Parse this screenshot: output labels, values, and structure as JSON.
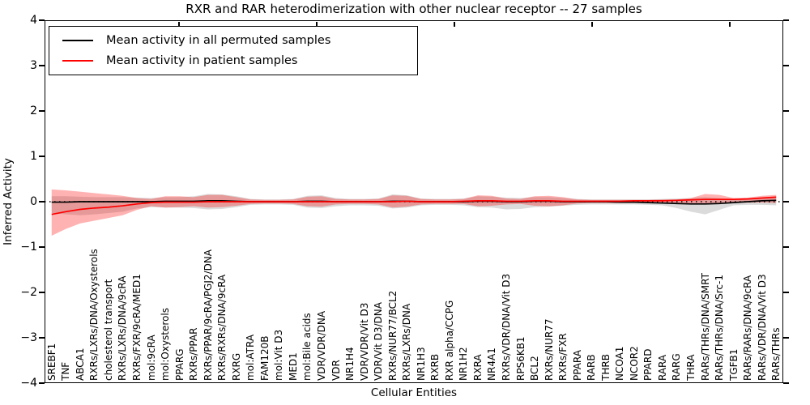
{
  "title": "RXR and RAR heterodimerization with other nuclear receptor -- 27 samples",
  "axes": {
    "ylabel": "Inferred Activity",
    "xlabel": "Cellular Entities",
    "yticks": [
      4,
      3,
      2,
      1,
      0,
      -1,
      -2,
      -3,
      -4
    ],
    "yticklabels": [
      "4",
      "3",
      "2",
      "1",
      "0",
      "−1",
      "−2",
      "−3",
      "−4"
    ]
  },
  "legend": {
    "position": "upper left",
    "items": [
      {
        "label": "Mean activity in all permuted samples",
        "color": "#000000"
      },
      {
        "label": "Mean activity in patient samples",
        "color": "#ff0000"
      }
    ]
  },
  "colors": {
    "patient_line": "#ff0000",
    "permuted_line": "#000000",
    "patient_band": "#ff0000",
    "permuted_band": "#999999",
    "zero_line": "#000000",
    "frame": "#000000",
    "background": "#ffffff"
  },
  "chart_data": {
    "type": "line",
    "title": "RXR and RAR heterodimerization with other nuclear receptor -- 27 samples",
    "xlabel": "Cellular Entities",
    "ylabel": "Inferred Activity",
    "ylim": [
      -4,
      4
    ],
    "grid": false,
    "zero_line_style": "dotted",
    "legend_position": "upper left",
    "n_samples": 27,
    "categories": [
      "SREBF1",
      "TNF",
      "ABCA1",
      "RXRs/LXRs/DNA/Oxysterols",
      "cholesterol transport",
      "RXRs/LXRs/DNA/9cRA",
      "RXRs/FXR/9cRA/MED1",
      "mol:9cRA",
      "mol:Oxysterols",
      "PPARG",
      "RXRs/PPAR",
      "RXRs/PPAR/9cRA/PGJ2/DNA",
      "RXRs/RXRs/DNA/9cRA",
      "RXRG",
      "mol:ATRA",
      "FAM120B",
      "mol:Vit D3",
      "MED1",
      "mol:Bile acids",
      "VDR/VDR/DNA",
      "VDR",
      "NR1H4",
      "VDR/VDR/Vit D3",
      "VDR/Vit D3/DNA",
      "RXRs/NUR77/BCL2",
      "RXRs/LXRs/DNA",
      "NR1H3",
      "RXRB",
      "RXR alpha/CCPG",
      "NR1H2",
      "RXRA",
      "NR4A1",
      "RXRs/VDR/DNA/Vit D3",
      "RPS6KB1",
      "BCL2",
      "RXRs/NUR77",
      "RXRs/FXR",
      "PPARA",
      "RARB",
      "THRB",
      "NCOA1",
      "NCOR2",
      "PPARD",
      "RARA",
      "RARG",
      "THRA",
      "RARs/THRs/DNA/SMRT",
      "RARs/THRs/DNA/Src-1",
      "TGFB1",
      "RARs/RARs/DNA/9cRA",
      "RARs/VDR/DNA/Vit D3",
      "RARs/THRs"
    ],
    "series": [
      {
        "name": "Permuted samples confidence band",
        "type": "band",
        "color": "#999999",
        "opacity": 0.35,
        "upper": [
          0.12,
          0.12,
          0.11,
          0.1,
          0.1,
          0.1,
          0.09,
          0.08,
          0.1,
          0.1,
          0.12,
          0.17,
          0.16,
          0.12,
          0.06,
          0.05,
          0.05,
          0.06,
          0.13,
          0.14,
          0.08,
          0.06,
          0.06,
          0.07,
          0.16,
          0.14,
          0.07,
          0.06,
          0.06,
          0.07,
          0.12,
          0.11,
          0.09,
          0.08,
          0.1,
          0.1,
          0.08,
          0.06,
          0.05,
          0.05,
          0.05,
          0.05,
          0.05,
          0.06,
          0.07,
          0.08,
          0.1,
          0.08,
          0.06,
          0.06,
          0.07,
          0.08
        ],
        "lower": [
          -0.25,
          -0.28,
          -0.3,
          -0.28,
          -0.25,
          -0.22,
          -0.15,
          -0.12,
          -0.13,
          -0.13,
          -0.14,
          -0.17,
          -0.16,
          -0.12,
          -0.07,
          -0.06,
          -0.06,
          -0.07,
          -0.13,
          -0.14,
          -0.1,
          -0.08,
          -0.08,
          -0.09,
          -0.15,
          -0.13,
          -0.08,
          -0.07,
          -0.07,
          -0.08,
          -0.12,
          -0.13,
          -0.17,
          -0.16,
          -0.12,
          -0.11,
          -0.09,
          -0.07,
          -0.06,
          -0.06,
          -0.06,
          -0.06,
          -0.07,
          -0.08,
          -0.14,
          -0.22,
          -0.28,
          -0.18,
          -0.08,
          -0.07,
          -0.07,
          -0.08
        ]
      },
      {
        "name": "Patient samples confidence band",
        "type": "band",
        "color": "#ff0000",
        "opacity": 0.3,
        "upper": [
          0.27,
          0.25,
          0.22,
          0.19,
          0.16,
          0.13,
          0.08,
          0.06,
          0.12,
          0.12,
          0.1,
          0.15,
          0.15,
          0.1,
          0.05,
          0.04,
          0.04,
          0.05,
          0.11,
          0.12,
          0.06,
          0.05,
          0.05,
          0.06,
          0.14,
          0.13,
          0.06,
          0.05,
          0.05,
          0.06,
          0.14,
          0.13,
          0.07,
          0.06,
          0.12,
          0.13,
          0.1,
          0.05,
          0.04,
          0.04,
          0.04,
          0.04,
          0.04,
          0.05,
          0.05,
          0.08,
          0.17,
          0.15,
          0.08,
          0.09,
          0.13,
          0.15
        ],
        "lower": [
          -0.75,
          -0.6,
          -0.48,
          -0.42,
          -0.36,
          -0.3,
          -0.18,
          -0.1,
          -0.13,
          -0.12,
          -0.1,
          -0.13,
          -0.12,
          -0.09,
          -0.05,
          -0.04,
          -0.04,
          -0.05,
          -0.1,
          -0.11,
          -0.06,
          -0.05,
          -0.05,
          -0.06,
          -0.13,
          -0.11,
          -0.06,
          -0.05,
          -0.05,
          -0.05,
          -0.1,
          -0.09,
          -0.06,
          -0.05,
          -0.09,
          -0.1,
          -0.08,
          -0.04,
          -0.03,
          -0.03,
          -0.03,
          -0.03,
          -0.03,
          -0.03,
          -0.03,
          -0.04,
          -0.06,
          -0.05,
          -0.03,
          -0.02,
          -0.02,
          -0.03
        ]
      },
      {
        "name": "Mean activity in all permuted samples",
        "type": "line",
        "color": "#000000",
        "values": [
          -0.01,
          -0.01,
          0,
          0,
          0,
          0,
          0,
          0,
          0.01,
          0.01,
          0.01,
          0.02,
          0.02,
          0.01,
          0,
          0,
          0,
          0,
          0.01,
          0.01,
          0,
          0,
          0,
          0,
          0.01,
          0.01,
          0,
          0,
          0,
          0,
          0.01,
          0.01,
          0,
          0,
          0.01,
          0.01,
          0,
          0,
          0,
          0,
          -0.01,
          -0.01,
          -0.02,
          -0.03,
          -0.04,
          -0.05,
          -0.05,
          -0.04,
          -0.02,
          0,
          0.02,
          0.03
        ]
      },
      {
        "name": "Mean activity in patient samples",
        "type": "line",
        "color": "#ff0000",
        "values": [
          -0.28,
          -0.22,
          -0.17,
          -0.14,
          -0.12,
          -0.09,
          -0.05,
          -0.02,
          -0.01,
          -0.01,
          -0.01,
          0,
          0,
          0,
          0,
          0,
          0,
          0,
          0,
          0,
          0,
          0,
          0,
          0,
          0,
          0.01,
          0,
          0,
          0,
          0.01,
          0.02,
          0.02,
          0.01,
          0.01,
          0.02,
          0.02,
          0.01,
          0.01,
          0.01,
          0.01,
          0.01,
          0.02,
          0.02,
          0.02,
          0.03,
          0.04,
          0.05,
          0.05,
          0.05,
          0.06,
          0.08,
          0.1
        ]
      }
    ]
  }
}
